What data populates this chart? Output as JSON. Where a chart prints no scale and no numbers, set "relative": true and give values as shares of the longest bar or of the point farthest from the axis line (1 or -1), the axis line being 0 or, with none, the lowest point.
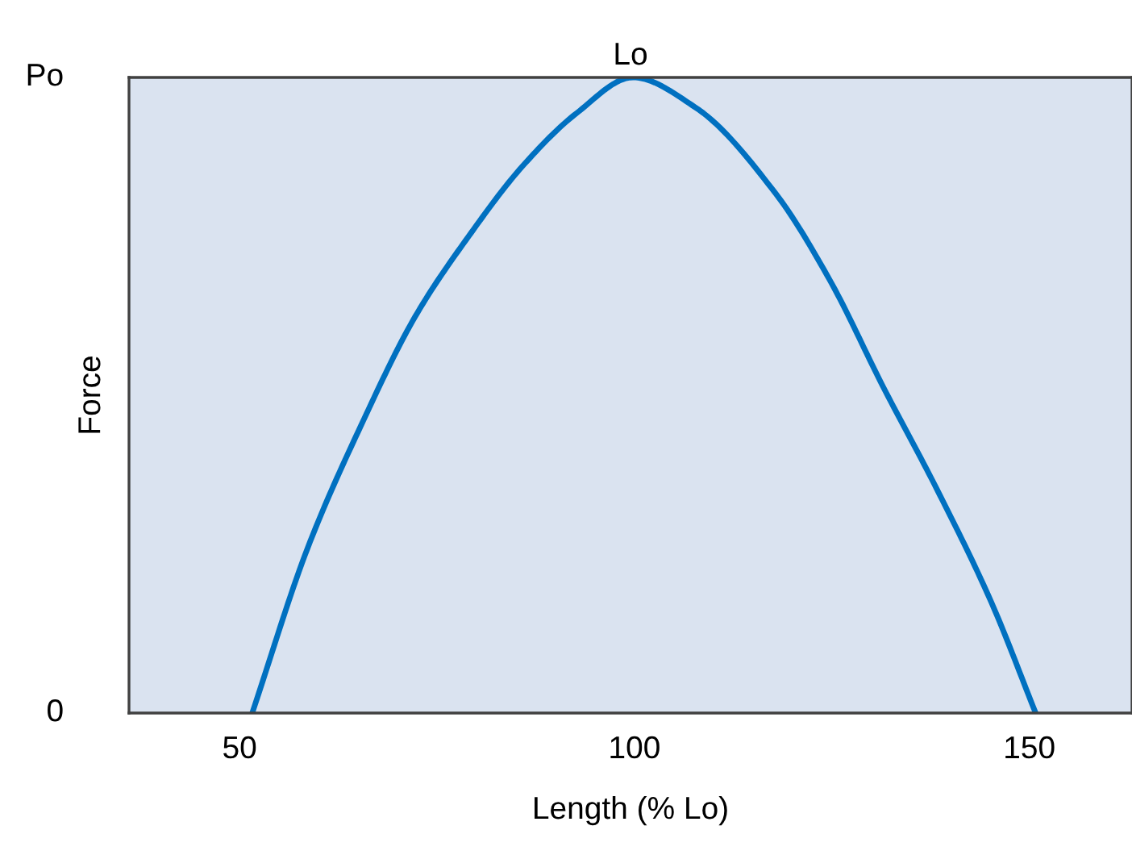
{
  "chart_data": {
    "type": "line",
    "xlabel": "Length (% Lo)",
    "ylabel": "Force",
    "relative": true,
    "x": [
      51.6,
      58.6,
      65.4,
      72.2,
      79.0,
      85.8,
      92.7,
      99.8,
      107.7,
      117.9,
      124.7,
      131.5,
      138.3,
      145.2,
      150.8
    ],
    "series": [
      {
        "color": "#0070c0",
        "values": [
          0,
          0.259,
          0.453,
          0.623,
          0.75,
          0.86,
          0.944,
          1.0,
          0.953,
          0.817,
          0.682,
          0.513,
          0.352,
          0.174,
          0
        ]
      }
    ],
    "xlim": [
      36,
      163
    ],
    "xticks": [
      50,
      100,
      150
    ],
    "annotations": [
      "Po",
      "0",
      "Lo"
    ],
    "grid": false,
    "legend": false,
    "marker": "none",
    "line_style": "solid"
  }
}
